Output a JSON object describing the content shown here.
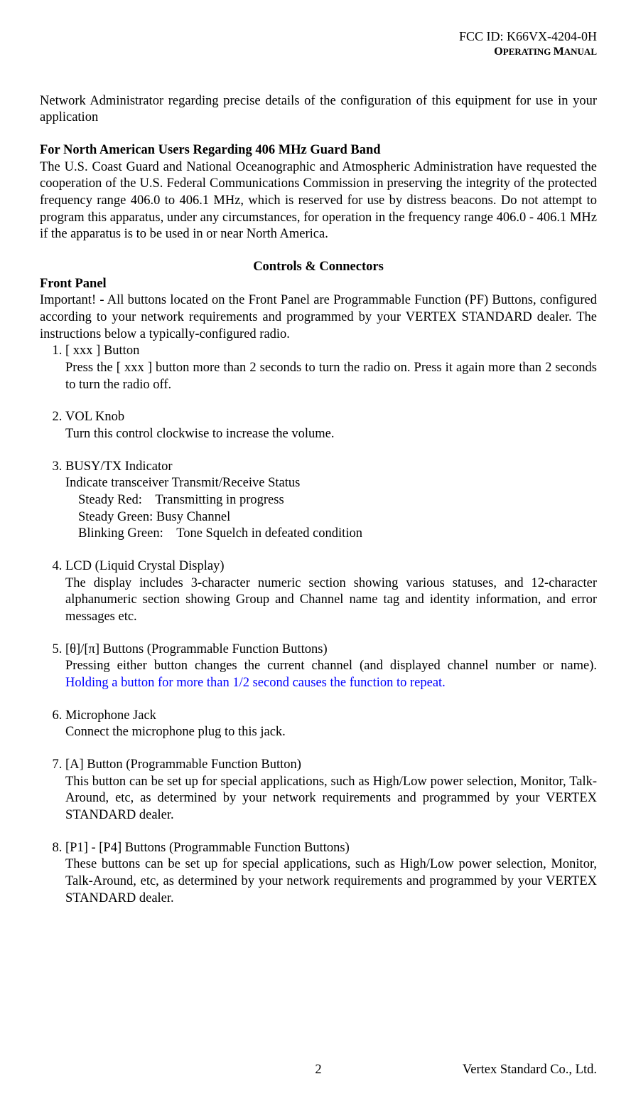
{
  "header": {
    "fcc_id": "FCC ID: K66VX-4204-0H",
    "subtitle_strong": "O",
    "subtitle_rest1": "PERATING ",
    "subtitle_strong2": "M",
    "subtitle_rest2": "ANUAL"
  },
  "intro": "Network Administrator regarding precise details of the configuration of this equipment for use in your application",
  "na_heading": "For North American Users Regarding 406 MHz Guard Band",
  "na_body": "The U.S. Coast Guard and National Oceanographic and Atmospheric Administration have requested the cooperation of the U.S. Federal Communications Commission in preserving the integrity of the protected frequency range 406.0 to 406.1 MHz, which is reserved for use by distress beacons. Do not attempt to program this apparatus, under any circumstances, for operation in the frequency range 406.0 - 406.1 MHz if the apparatus is to be used in or near North America.",
  "cc_heading": "Controls & Connectors",
  "front_panel_heading": "Front Panel",
  "front_panel_body": "Important! - All buttons located on the Front Panel are Programmable Function (PF) Buttons, configured according to your network requirements and programmed by your VERTEX STANDARD dealer. The instructions below a typically-configured radio.",
  "items": [
    {
      "title": "[ xxx ] Button",
      "body": "Press the [ xxx ] button more than 2 seconds to turn the radio on. Press it again more than 2 seconds to turn the radio off."
    },
    {
      "title": "VOL Knob",
      "body": "Turn this control clockwise to increase the volume."
    },
    {
      "title": "BUSY/TX Indicator",
      "body": "Indicate transceiver Transmit/Receive Status",
      "sub": [
        "Steady Red: Transmitting in progress",
        "Steady Green: Busy Channel",
        "Blinking Green: Tone Squelch in defeated condition"
      ]
    },
    {
      "title": "LCD (Liquid Crystal Display)",
      "body": "The display includes 3-character numeric section showing various statuses, and 12-character alphanumeric section showing Group and Channel name tag and identity information, and error messages etc."
    },
    {
      "title": "[θ]/[π] Buttons (Programmable Function Buttons)",
      "body_pre": "Pressing either button changes the current channel (and displayed channel number or name). ",
      "body_hl": "Holding a button for more than 1/2 second causes the function to repeat."
    },
    {
      "title": "Microphone Jack",
      "body": "Connect the microphone plug to this jack."
    },
    {
      "title": "[A] Button (Programmable Function Button)",
      "body": "This button can be set up for special applications, such as High/Low power selection, Monitor, Talk-Around, etc, as determined by your network requirements and programmed by your VERTEX STANDARD dealer."
    },
    {
      "title": "[P1] - [P4] Buttons (Programmable Function Buttons)",
      "body": "These buttons can be set up for special applications, such as High/Low power selection, Monitor, Talk-Around, etc, as determined by your network requirements and programmed by your VERTEX STANDARD dealer."
    }
  ],
  "footer": {
    "page_number": "2",
    "company": "Vertex Standard Co., Ltd."
  },
  "colors": {
    "text": "#000000",
    "highlight": "#0000ff",
    "background": "#ffffff"
  }
}
